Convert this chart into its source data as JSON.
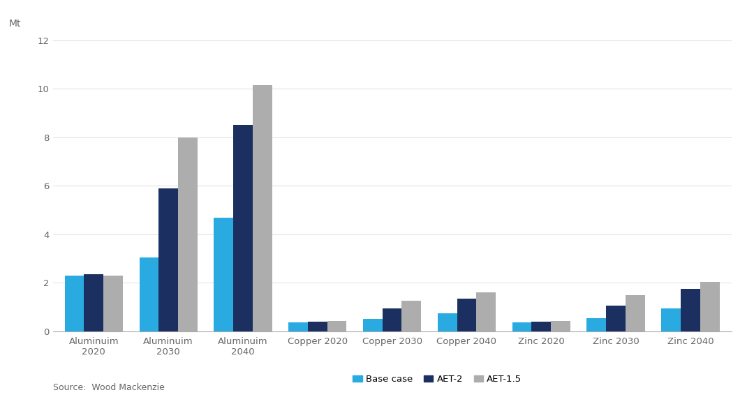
{
  "categories": [
    "Aluminuim\n2020",
    "Aluminuim\n2030",
    "Aluminuim\n2040",
    "Copper 2020",
    "Copper 2030",
    "Copper 2040",
    "Zinc 2020",
    "Zinc 2030",
    "Zinc 2040"
  ],
  "series": {
    "Base case": [
      2.3,
      3.05,
      4.7,
      0.38,
      0.5,
      0.75,
      0.38,
      0.55,
      0.95
    ],
    "AET-2": [
      2.35,
      5.9,
      8.5,
      0.4,
      0.95,
      1.35,
      0.4,
      1.05,
      1.75
    ],
    "AET-1.5": [
      2.3,
      8.0,
      10.15,
      0.42,
      1.25,
      1.6,
      0.42,
      1.5,
      2.05
    ]
  },
  "colors": {
    "Base case": "#29ABE2",
    "AET-2": "#1B3060",
    "AET-1.5": "#ADADAD"
  },
  "mt_label": "Mt",
  "ylim": [
    0,
    12
  ],
  "yticks": [
    0,
    2,
    4,
    6,
    8,
    10,
    12
  ],
  "background_color": "#FFFFFF",
  "source_text": "Source:  Wood Mackenzie",
  "bar_width": 0.26
}
